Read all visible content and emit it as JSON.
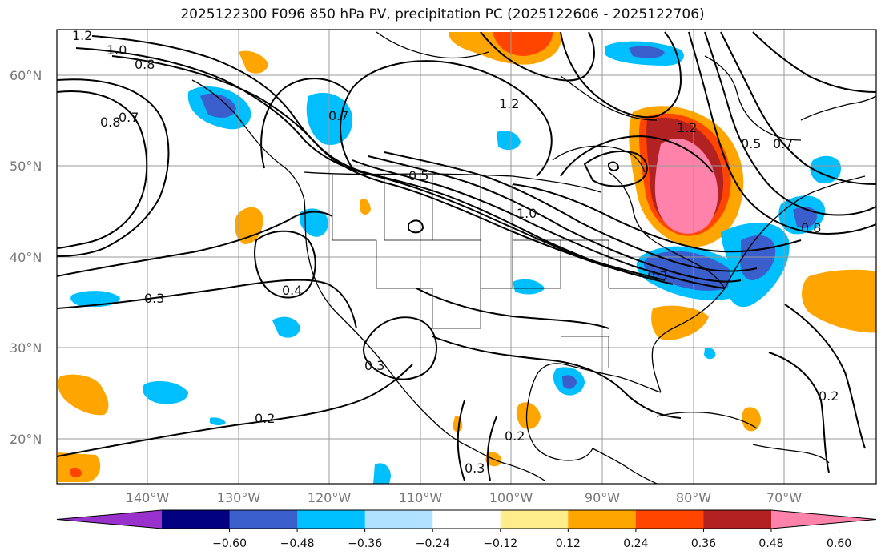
{
  "title": "2025122300 F096 850 hPa PV, precipitation PC (2025122606 - 2025122706)",
  "map": {
    "lat_labels": [
      "60°N",
      "50°N",
      "40°N",
      "30°N",
      "20°N"
    ],
    "lon_labels": [
      "140°W",
      "130°W",
      "120°W",
      "110°W",
      "100°W",
      "90°W",
      "80°W",
      "70°W"
    ],
    "contour_labels": [
      "1.2",
      "1.0",
      "0.8",
      "0.8",
      "0.7",
      "0.7",
      "1.2",
      "0.5",
      "1.0",
      "0.4",
      "0.3",
      "0.3",
      "0.2",
      "0.2",
      "0.3",
      "0.2",
      "1.2",
      "0.5",
      "0.7",
      "0.8",
      "0.3"
    ]
  },
  "colorbar": {
    "ticks": [
      "−0.60",
      "−0.48",
      "−0.36",
      "−0.24",
      "−0.12",
      "0.12",
      "0.24",
      "0.36",
      "0.48",
      "0.60"
    ],
    "colors": [
      "#9932cc",
      "#000080",
      "#3a5fcd",
      "#00bfff",
      "#b0e2ff",
      "#ffffff",
      "#ffec8b",
      "#ffa500",
      "#ff4500",
      "#b22222",
      "#ff82ab"
    ]
  }
}
